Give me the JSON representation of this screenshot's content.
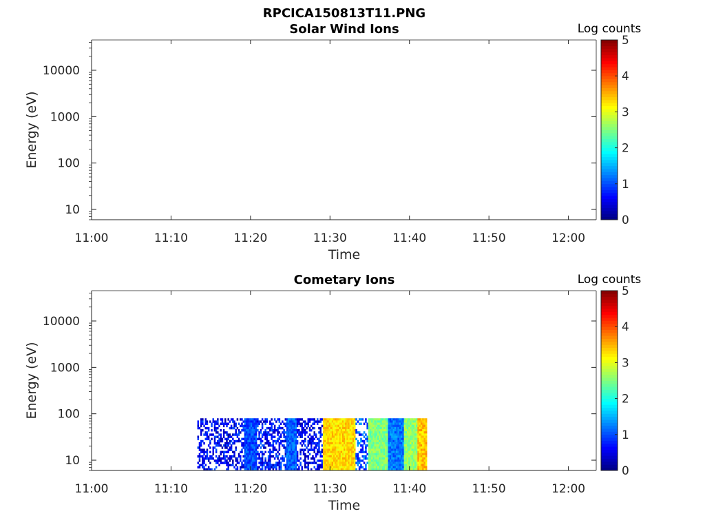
{
  "figure": {
    "title": "RPCICA150813T11.PNG"
  },
  "colormap": [
    "#00007f",
    "#0000ff",
    "#007fff",
    "#00ffff",
    "#7fff7f",
    "#ffff00",
    "#ff7f00",
    "#ff0000",
    "#7f0000"
  ],
  "chart_data": [
    {
      "type": "heatmap",
      "title": "Solar Wind Ions",
      "xlabel": "Time",
      "ylabel": "Energy (eV)",
      "x_ticks": [
        "11:00",
        "11:10",
        "11:20",
        "11:30",
        "11:40",
        "11:50",
        "12:00"
      ],
      "x_range_min": [
        0,
        63.5
      ],
      "y_scale": "log",
      "y_range": [
        6,
        45000
      ],
      "y_ticks": [
        10,
        100,
        1000,
        10000
      ],
      "colorbar": {
        "label": "Log counts",
        "range": [
          0,
          5
        ],
        "ticks": [
          0,
          1,
          2,
          3,
          4,
          5
        ]
      },
      "segments": []
    },
    {
      "type": "heatmap",
      "title": "Cometary Ions",
      "xlabel": "Time",
      "ylabel": "Energy (eV)",
      "x_ticks": [
        "11:00",
        "11:10",
        "11:20",
        "11:30",
        "11:40",
        "11:50",
        "12:00"
      ],
      "x_range_min": [
        0,
        63.5
      ],
      "y_scale": "log",
      "y_range": [
        6,
        45000
      ],
      "y_ticks": [
        10,
        100,
        1000,
        10000
      ],
      "colorbar": {
        "label": "Log counts",
        "range": [
          0,
          5
        ],
        "ticks": [
          0,
          1,
          2,
          3,
          4,
          5
        ]
      },
      "energy_range_eV": [
        6,
        80
      ],
      "segments": [
        {
          "t_start": 13.3,
          "t_end": 19.2,
          "level": 0.6,
          "sparse": true
        },
        {
          "t_start": 19.2,
          "t_end": 20.8,
          "level": 1.0,
          "sparse": false
        },
        {
          "t_start": 20.8,
          "t_end": 24.5,
          "level": 0.7,
          "sparse": true
        },
        {
          "t_start": 24.5,
          "t_end": 25.8,
          "level": 1.1,
          "sparse": false
        },
        {
          "t_start": 25.8,
          "t_end": 29.1,
          "level": 0.6,
          "sparse": true
        },
        {
          "t_start": 29.1,
          "t_end": 33.2,
          "level": 3.3,
          "sparse": false
        },
        {
          "t_start": 33.2,
          "t_end": 34.8,
          "level": 1.0,
          "sparse": true
        },
        {
          "t_start": 34.8,
          "t_end": 37.3,
          "level": 2.5,
          "sparse": false
        },
        {
          "t_start": 37.3,
          "t_end": 39.3,
          "level": 1.2,
          "sparse": false
        },
        {
          "t_start": 39.3,
          "t_end": 41.0,
          "level": 2.6,
          "sparse": false
        },
        {
          "t_start": 41.0,
          "t_end": 42.2,
          "level": 3.4,
          "sparse": false
        }
      ]
    }
  ]
}
